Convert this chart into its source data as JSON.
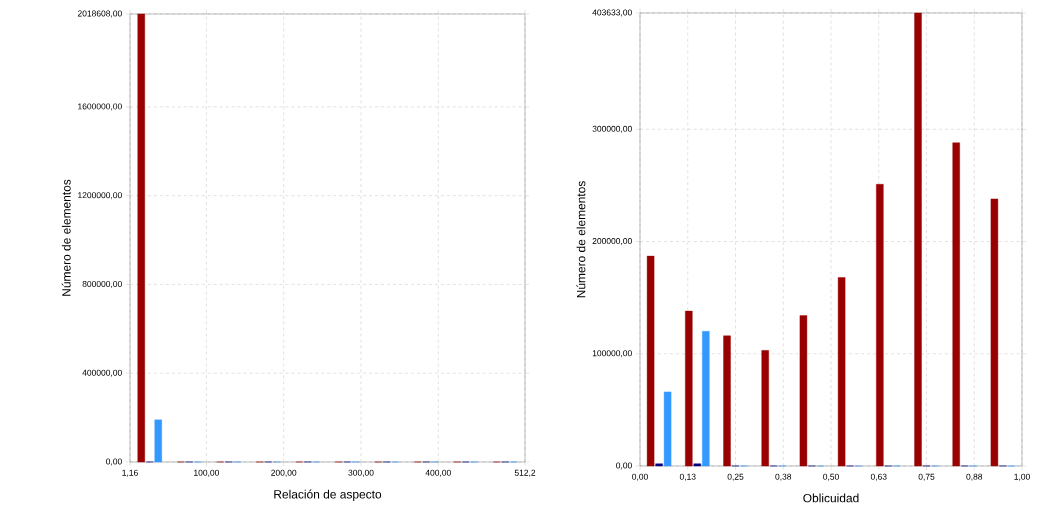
{
  "chart_data": [
    {
      "type": "bar",
      "xlabel": "Relación de aspecto",
      "ylabel": "Número de elementos",
      "grid": true,
      "xlim": [
        1.16,
        512.2
      ],
      "ylim": [
        0,
        2018608
      ],
      "xticks": [
        {
          "value": 1.16,
          "label": "1,16"
        },
        {
          "value": 100,
          "label": "100,00"
        },
        {
          "value": 200,
          "label": "200,00"
        },
        {
          "value": 300,
          "label": "300,00"
        },
        {
          "value": 400,
          "label": "400,00"
        },
        {
          "value": 512.2,
          "label": "512,2"
        }
      ],
      "yticks": [
        {
          "value": 0,
          "label": "0,00"
        },
        {
          "value": 400000,
          "label": "400000,00"
        },
        {
          "value": 800000,
          "label": "800000,00"
        },
        {
          "value": 1200000,
          "label": "1200000,00"
        },
        {
          "value": 1600000,
          "label": "1600000,00"
        },
        {
          "value": 2018608,
          "label": "2018608,00"
        }
      ],
      "series": [
        {
          "color": "#990000",
          "x": [
            26.7,
            77.8,
            128.9,
            180.0,
            231.1,
            282.2,
            333.3,
            384.4,
            435.5,
            486.6
          ],
          "values": [
            2018608,
            0,
            0,
            0,
            0,
            0,
            0,
            0,
            0,
            0
          ]
        },
        {
          "color": "#000080",
          "x": [
            26.7,
            77.8,
            128.9,
            180.0,
            231.1,
            282.2,
            333.3,
            384.4,
            435.5,
            486.6
          ],
          "values": [
            0,
            0,
            0,
            0,
            0,
            0,
            0,
            0,
            0,
            0
          ]
        },
        {
          "color": "#3399ff",
          "x": [
            26.7,
            77.8,
            128.9,
            180.0,
            231.1,
            282.2,
            333.3,
            384.4,
            435.5,
            486.6
          ],
          "values": [
            190000,
            0,
            0,
            0,
            0,
            0,
            0,
            0,
            0,
            0
          ]
        }
      ]
    },
    {
      "type": "bar",
      "xlabel": "Oblicuidad",
      "ylabel": "Número de elementos",
      "grid": true,
      "xlim": [
        0,
        1
      ],
      "ylim": [
        0,
        403633
      ],
      "xticks": [
        {
          "value": 0,
          "label": "0,00"
        },
        {
          "value": 0.125,
          "label": "0,13"
        },
        {
          "value": 0.25,
          "label": "0,25"
        },
        {
          "value": 0.375,
          "label": "0,38"
        },
        {
          "value": 0.5,
          "label": "0,50"
        },
        {
          "value": 0.625,
          "label": "0,63"
        },
        {
          "value": 0.75,
          "label": "0,75"
        },
        {
          "value": 0.875,
          "label": "0,88"
        },
        {
          "value": 1,
          "label": "1,00"
        }
      ],
      "yticks": [
        {
          "value": 0,
          "label": "0,00"
        },
        {
          "value": 100000,
          "label": "100000,00"
        },
        {
          "value": 200000,
          "label": "200000,00"
        },
        {
          "value": 300000,
          "label": "300000,00"
        },
        {
          "value": 403633,
          "label": "403633,00"
        }
      ],
      "series": [
        {
          "color": "#990000",
          "x": [
            0.05,
            0.15,
            0.25,
            0.35,
            0.45,
            0.55,
            0.65,
            0.75,
            0.85,
            0.95
          ],
          "values": [
            187000,
            138000,
            116000,
            103000,
            134000,
            168000,
            251000,
            403633,
            288000,
            238000
          ]
        },
        {
          "color": "#000080",
          "x": [
            0.05,
            0.15,
            0.25,
            0.35,
            0.45,
            0.55,
            0.65,
            0.75,
            0.85,
            0.95
          ],
          "values": [
            2000,
            2000,
            0,
            0,
            0,
            0,
            0,
            0,
            0,
            0
          ]
        },
        {
          "color": "#3399ff",
          "x": [
            0.05,
            0.15,
            0.25,
            0.35,
            0.45,
            0.55,
            0.65,
            0.75,
            0.85,
            0.95
          ],
          "values": [
            66000,
            120000,
            0,
            0,
            0,
            0,
            0,
            0,
            0,
            0
          ]
        }
      ]
    }
  ]
}
